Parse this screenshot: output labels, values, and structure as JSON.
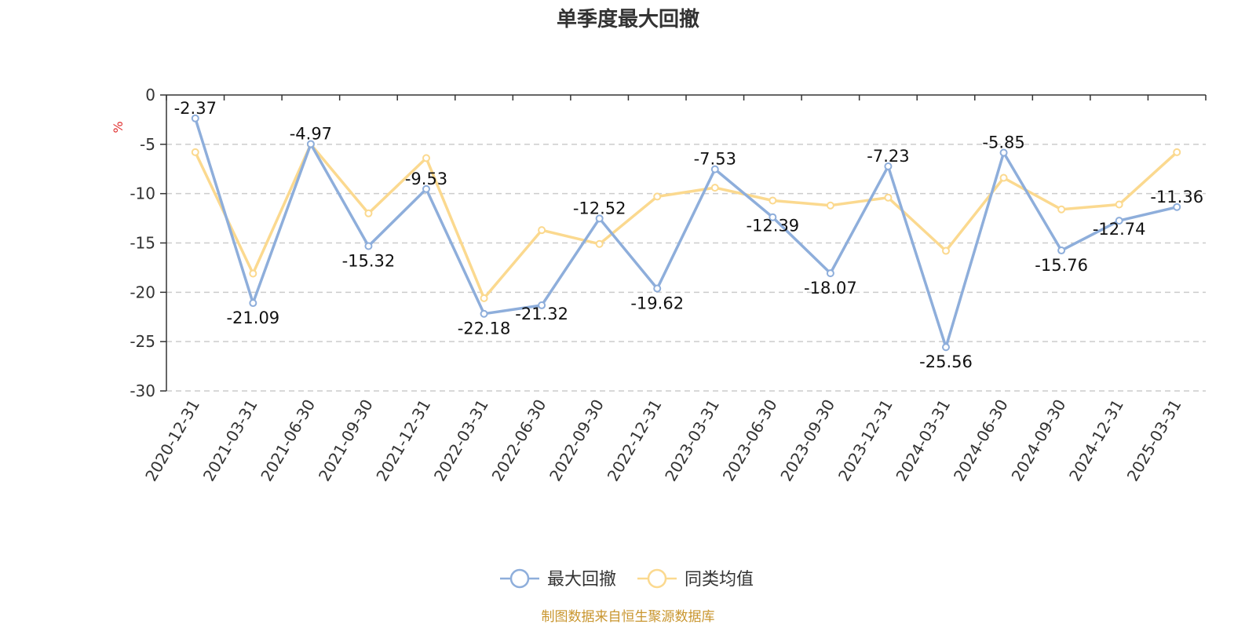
{
  "chart_data": {
    "type": "line",
    "title": "单季度最大回撤",
    "ylabel": "%",
    "ylim": [
      -30,
      0
    ],
    "yticks": [
      0,
      -5,
      -10,
      -15,
      -20,
      -25,
      -30
    ],
    "grid": true,
    "legend_position": "bottom-center",
    "categories": [
      "2020-12-31",
      "2021-03-31",
      "2021-06-30",
      "2021-09-30",
      "2021-12-31",
      "2022-03-31",
      "2022-06-30",
      "2022-09-30",
      "2022-12-31",
      "2023-03-31",
      "2023-06-30",
      "2023-09-30",
      "2023-12-31",
      "2024-03-31",
      "2024-06-30",
      "2024-09-30",
      "2024-12-31",
      "2025-03-31"
    ],
    "series": [
      {
        "name": "最大回撤",
        "color": "#8eaedb",
        "values": [
          -2.37,
          -21.09,
          -4.97,
          -15.32,
          -9.53,
          -22.18,
          -21.32,
          -12.52,
          -19.62,
          -7.53,
          -12.39,
          -18.07,
          -7.23,
          -25.56,
          -5.85,
          -15.76,
          -12.74,
          -11.36
        ],
        "labels": [
          "-2.37",
          "-21.09",
          "-4.97",
          "-15.32",
          "-9.53",
          "-22.18",
          "-21.32",
          "-12.52",
          "-19.62",
          "-7.53",
          "-12.39",
          "-18.07",
          "-7.23",
          "-25.56",
          "-5.85",
          "-15.76",
          "-12.74",
          "-11.36"
        ]
      },
      {
        "name": "同类均值",
        "color": "#fbd98f",
        "values": [
          -5.8,
          -18.1,
          -5.0,
          -12.0,
          -6.4,
          -20.6,
          -13.7,
          -15.1,
          -10.3,
          -9.4,
          -10.7,
          -11.2,
          -10.4,
          -15.8,
          -8.4,
          -11.6,
          -11.1,
          -5.8
        ]
      }
    ]
  },
  "footer": {
    "source": "制图数据来自恒生聚源数据库",
    "source_color": "#c9962f"
  },
  "unit_color": "#e03030"
}
